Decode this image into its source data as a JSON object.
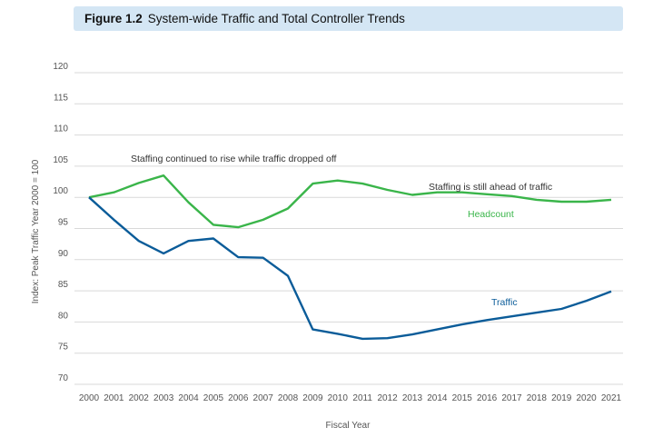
{
  "figure": {
    "number": "Figure 1.2",
    "title": "System-wide Traffic and Total Controller Trends"
  },
  "chart_data": {
    "type": "line",
    "title": "System-wide Traffic and Total Controller Trends",
    "xlabel": "Fiscal Year",
    "ylabel": "Index:  Peak Traffic Year 2000 = 100",
    "ylim": [
      70,
      120
    ],
    "yticks": [
      70,
      75,
      80,
      85,
      90,
      95,
      100,
      105,
      110,
      115,
      120
    ],
    "grid": "horizontal",
    "x": [
      "2000",
      "2001",
      "2002",
      "2003",
      "2004",
      "2005",
      "2006",
      "2007",
      "2008",
      "2009",
      "2010",
      "2011",
      "2012",
      "2013",
      "2014",
      "2015",
      "2016",
      "2017",
      "2018",
      "2019",
      "2020",
      "2021"
    ],
    "series": [
      {
        "name": "Headcount",
        "color": "#3ab54a",
        "values": [
          100,
          100.8,
          102.3,
          103.5,
          99.2,
          95.6,
          95.2,
          96.4,
          98.2,
          102.2,
          102.7,
          102.2,
          101.2,
          100.4,
          100.8,
          100.8,
          100.5,
          100.2,
          99.6,
          99.3,
          99.3,
          99.6
        ]
      },
      {
        "name": "Traffic",
        "color": "#0b5c99",
        "values": [
          100,
          96.4,
          93.0,
          91.0,
          93.0,
          93.4,
          90.4,
          90.3,
          87.4,
          78.8,
          78.1,
          77.3,
          77.4,
          78.0,
          78.8,
          79.6,
          80.3,
          80.9,
          81.5,
          82.1,
          83.4,
          84.9
        ]
      }
    ],
    "annotations": [
      "Staffing continued to rise while traffic dropped off",
      "Staffing is still ahead of traffic"
    ]
  }
}
